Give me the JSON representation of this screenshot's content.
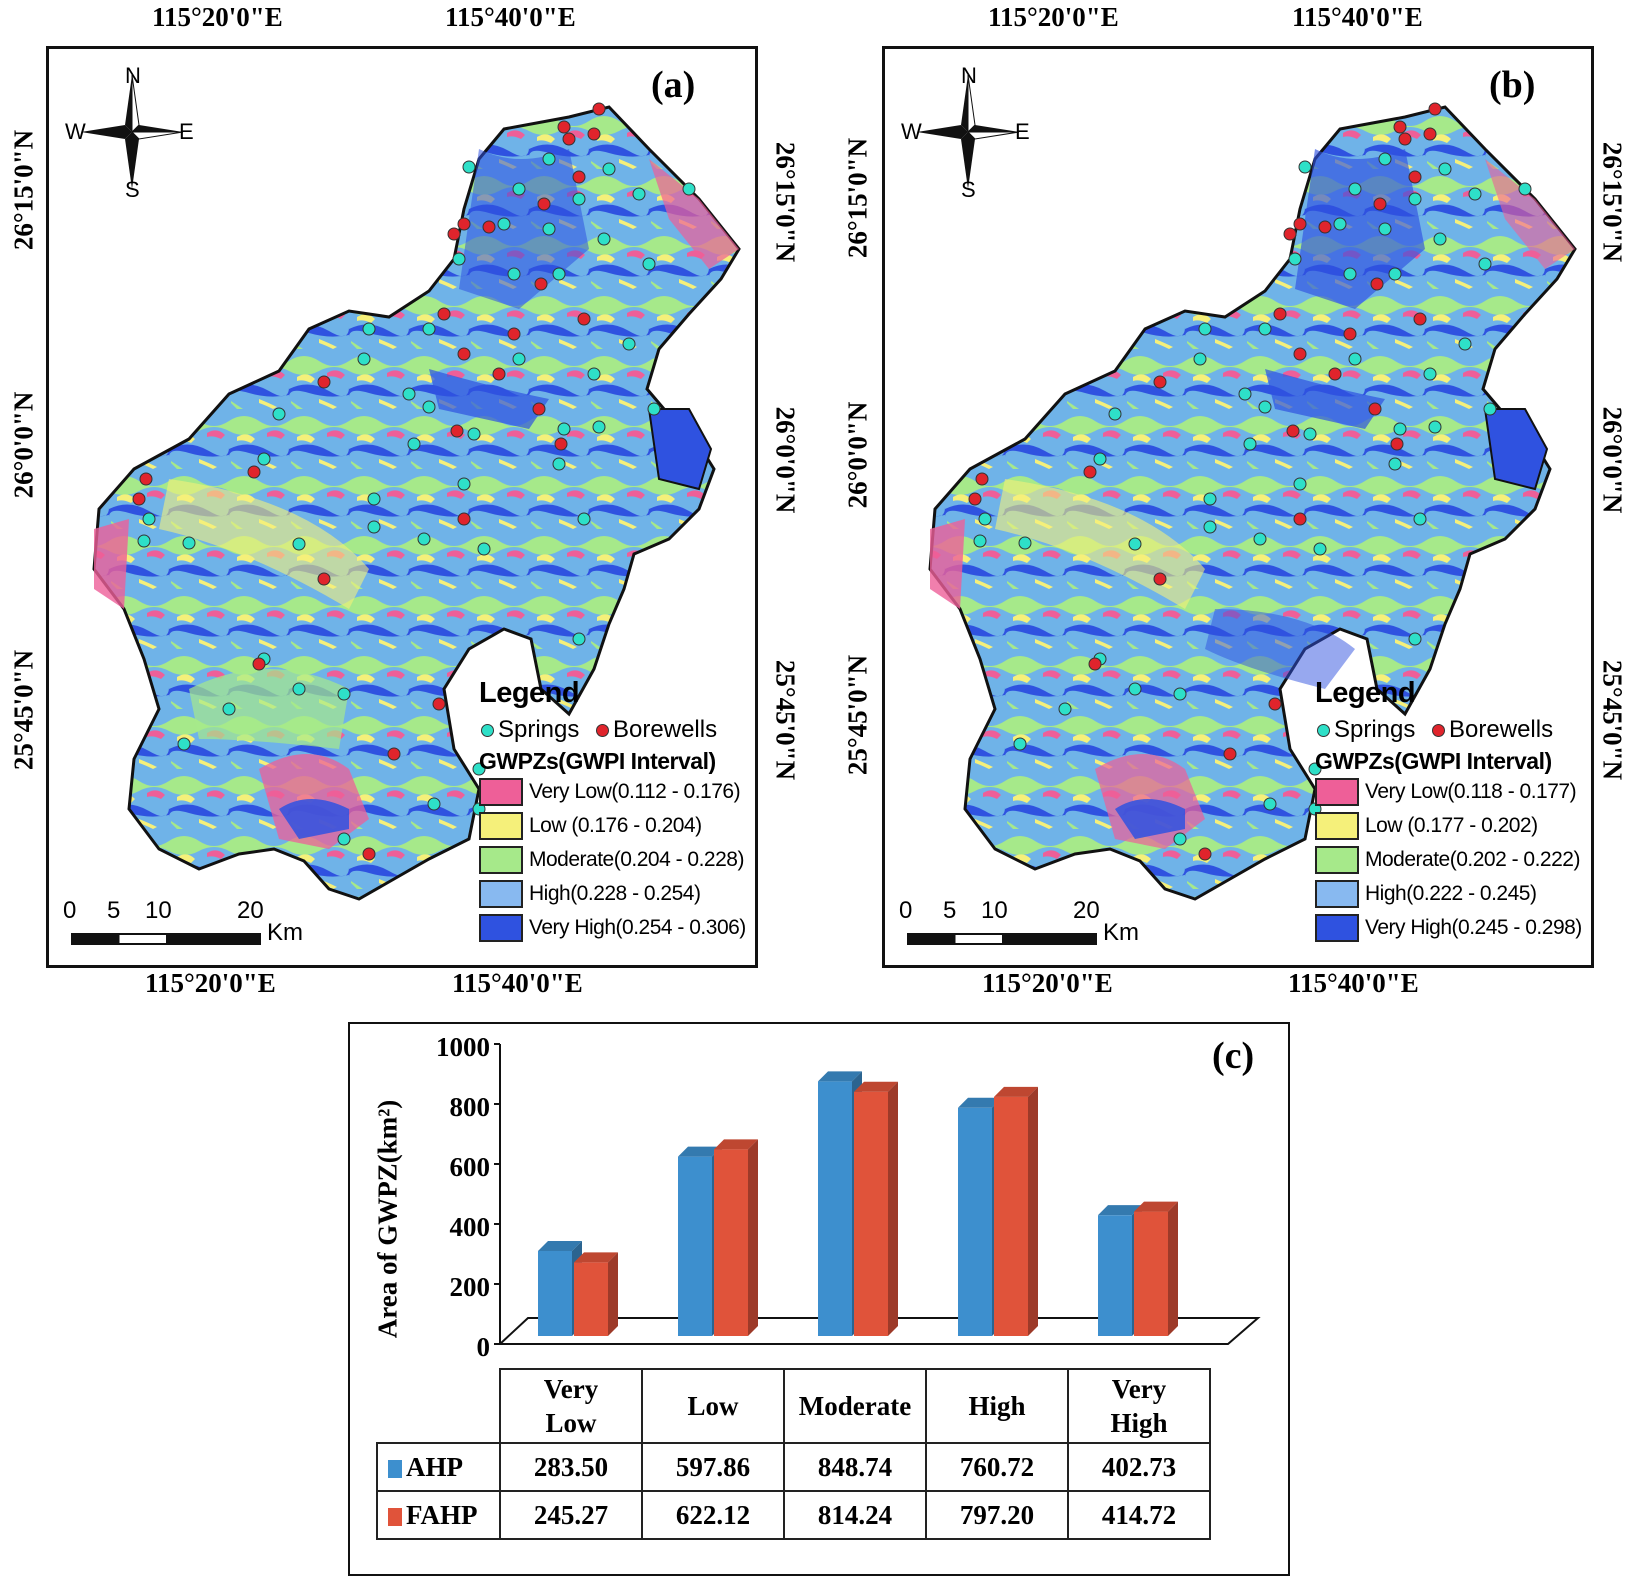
{
  "map_a": {
    "panel": "(a)",
    "top_lon": [
      "115°20'0\"E",
      "115°40'0\"E"
    ],
    "bottom_lon": [
      "115°20'0\"E",
      "115°40'0\"E"
    ],
    "left_lat": [
      "26°15'0\"N",
      "26°0'0\"N",
      "25°45'0\"N"
    ],
    "right_lat": [
      "26°15'0\"N",
      "26°0'0\"N",
      "25°45'0\"N"
    ],
    "north_arrow": {
      "n": "N",
      "s": "S",
      "w": "W",
      "e": "E"
    },
    "scale": {
      "ticks": [
        "0",
        "5",
        "10",
        "20"
      ],
      "unit": "Km"
    },
    "legend": {
      "title": "Legend",
      "springs": "Springs",
      "borewells": "Borewells",
      "subtitle": "GWPZs(GWPI Interval)",
      "classes": [
        {
          "label": "Very Low(0.112 - 0.176)",
          "color": "#ee5f98"
        },
        {
          "label": "Low (0.176 - 0.204)",
          "color": "#f5f07a"
        },
        {
          "label": "Moderate(0.204 - 0.228)",
          "color": "#a6e98a"
        },
        {
          "label": "High(0.228 - 0.254)",
          "color": "#88b9f0"
        },
        {
          "label": "Very High(0.254 - 0.306)",
          "color": "#2f52e0"
        }
      ]
    }
  },
  "map_b": {
    "panel": "(b)",
    "top_lon": [
      "115°20'0\"E",
      "115°40'0\"E"
    ],
    "bottom_lon": [
      "115°20'0\"E",
      "115°40'0\"E"
    ],
    "left_lat": [
      "26°15'0\"N",
      "26°0'0\"N",
      "25°45'0\"N"
    ],
    "right_lat": [
      "26°15'0\"N",
      "26°0'0\"N",
      "25°45'0\"N"
    ],
    "north_arrow": {
      "n": "N",
      "s": "S",
      "w": "W",
      "e": "E"
    },
    "scale": {
      "ticks": [
        "0",
        "5",
        "10",
        "20"
      ],
      "unit": "Km"
    },
    "legend": {
      "title": "Legend",
      "springs": "Springs",
      "borewells": "Borewells",
      "subtitle": "GWPZs(GWPI Interval)",
      "classes": [
        {
          "label": "Very Low(0.118 - 0.177)",
          "color": "#ee5f98"
        },
        {
          "label": "Low (0.177 - 0.202)",
          "color": "#f5f07a"
        },
        {
          "label": "Moderate(0.202 - 0.222)",
          "color": "#a6e98a"
        },
        {
          "label": "High(0.222 - 0.245)",
          "color": "#88b9f0"
        },
        {
          "label": "Very High(0.245 - 0.298)",
          "color": "#2f52e0"
        }
      ]
    }
  },
  "point_colors": {
    "springs": "#2ee0c8",
    "borewells": "#e0242c"
  },
  "chart_data": {
    "type": "bar",
    "panel": "(c)",
    "ylabel": "Area of GWPZ(km²)",
    "ylim": [
      0,
      1000
    ],
    "yticks": [
      "0",
      "200",
      "400",
      "600",
      "800",
      "1000"
    ],
    "categories": [
      "Very Low",
      "Low",
      "Moderate",
      "High",
      "Very High"
    ],
    "series": [
      {
        "name": "AHP",
        "color": "#3d8fce",
        "values": [
          283.5,
          597.86,
          848.74,
          760.72,
          402.73
        ],
        "labels": [
          "283.50",
          "597.86",
          "848.74",
          "760.72",
          "402.73"
        ]
      },
      {
        "name": "FAHP",
        "color": "#e0533a",
        "values": [
          245.27,
          622.12,
          814.24,
          797.2,
          414.72
        ],
        "labels": [
          "245.27",
          "622.12",
          "814.24",
          "797.20",
          "414.72"
        ]
      }
    ],
    "category_headers": [
      [
        "Very",
        "Low"
      ],
      [
        "Low"
      ],
      [
        "Moderate"
      ],
      [
        "High"
      ],
      [
        "Very",
        "High"
      ]
    ]
  }
}
